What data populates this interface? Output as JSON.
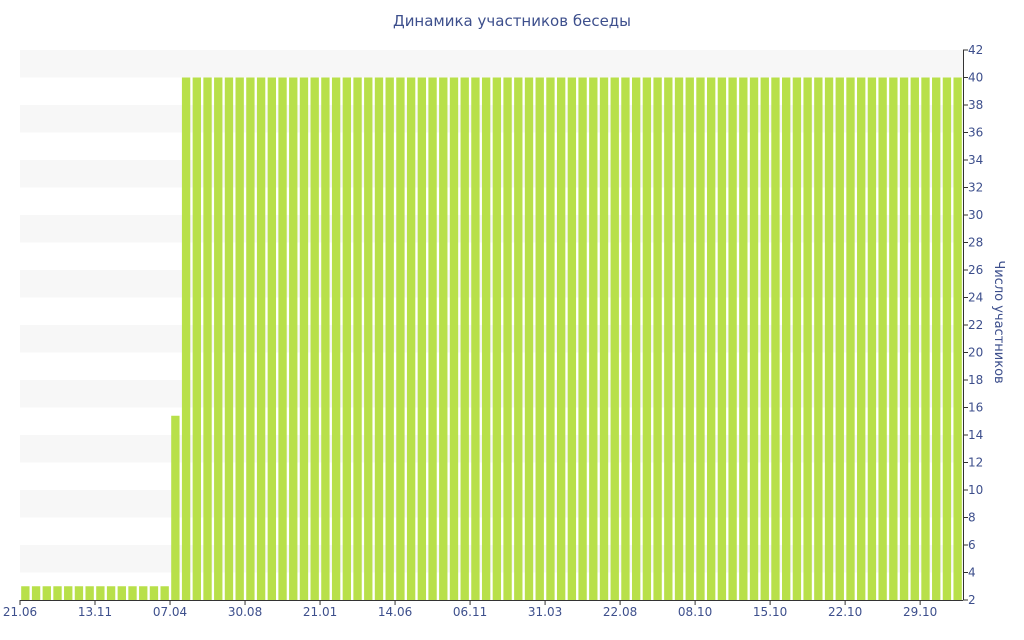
{
  "chart_data": {
    "type": "bar",
    "title": "Динамика участников беседы",
    "xlabel": "",
    "ylabel": "Число участников",
    "ylim": [
      2,
      42
    ],
    "yticks": [
      2,
      4,
      6,
      8,
      10,
      12,
      14,
      16,
      18,
      20,
      22,
      24,
      26,
      28,
      30,
      32,
      34,
      36,
      38,
      40,
      42
    ],
    "y_axis_side": "right",
    "grid": "alternating horizontal bands",
    "legend": "none",
    "x_tick_labels": [
      "21.06",
      "13.11",
      "07.04",
      "30.08",
      "21.01",
      "14.06",
      "06.11",
      "31.03",
      "22.08",
      "08.10",
      "15.10",
      "22.10",
      "29.10"
    ],
    "series": [
      {
        "color": "#b8e04a",
        "values": [
          3,
          3,
          3,
          3,
          3,
          3,
          3,
          3,
          3,
          3,
          3,
          3,
          3,
          3,
          15.4,
          40,
          40,
          40,
          40,
          40,
          40,
          40,
          40,
          40,
          40,
          40,
          40,
          40,
          40,
          40,
          40,
          40,
          40,
          40,
          40,
          40,
          40,
          40,
          40,
          40,
          40,
          40,
          40,
          40,
          40,
          40,
          40,
          40,
          40,
          40,
          40,
          40,
          40,
          40,
          40,
          40,
          40,
          40,
          40,
          40,
          40,
          40,
          40,
          40,
          40,
          40,
          40,
          40,
          40,
          40,
          40,
          40,
          40,
          40,
          40,
          40,
          40,
          40,
          40,
          40,
          40,
          40,
          40,
          40,
          40,
          40,
          40,
          40
        ]
      }
    ]
  },
  "colors": {
    "bar": "#b8e04a",
    "band": "#f7f7f7",
    "text": "#3d4f8c",
    "axis": "#333333"
  }
}
